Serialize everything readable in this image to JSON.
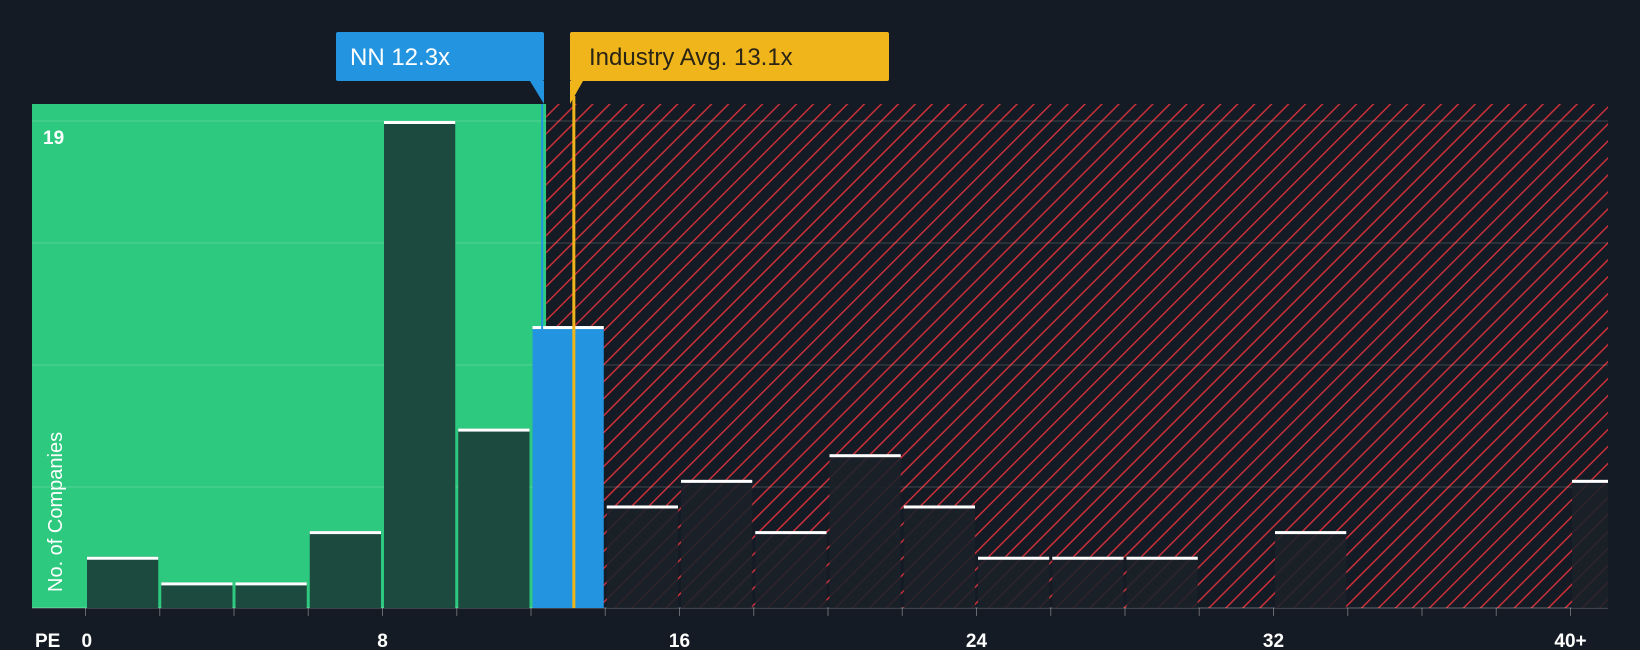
{
  "chart_data": {
    "type": "bar",
    "title": "",
    "xlabel": "PE",
    "ylabel": "No. of Companies",
    "xlim": [
      -3.6,
      41
    ],
    "ylim": [
      0,
      19.6
    ],
    "y_max_label": "19",
    "bins": [
      {
        "x0": 0,
        "x1": 2,
        "value": 2
      },
      {
        "x0": 2,
        "x1": 4,
        "value": 1
      },
      {
        "x0": 4,
        "x1": 6,
        "value": 1
      },
      {
        "x0": 6,
        "x1": 8,
        "value": 3
      },
      {
        "x0": 8,
        "x1": 10,
        "value": 19
      },
      {
        "x0": 10,
        "x1": 12,
        "value": 7
      },
      {
        "x0": 12,
        "x1": 14,
        "value": 11,
        "highlight": true
      },
      {
        "x0": 14,
        "x1": 16,
        "value": 4
      },
      {
        "x0": 16,
        "x1": 18,
        "value": 5
      },
      {
        "x0": 18,
        "x1": 20,
        "value": 3
      },
      {
        "x0": 20,
        "x1": 22,
        "value": 6
      },
      {
        "x0": 22,
        "x1": 24,
        "value": 4
      },
      {
        "x0": 24,
        "x1": 26,
        "value": 2
      },
      {
        "x0": 26,
        "x1": 28,
        "value": 2
      },
      {
        "x0": 28,
        "x1": 30,
        "value": 2
      },
      {
        "x0": 30,
        "x1": 32,
        "value": 0
      },
      {
        "x0": 32,
        "x1": 34,
        "value": 3
      },
      {
        "x0": 34,
        "x1": 36,
        "value": 0
      },
      {
        "x0": 36,
        "x1": 38,
        "value": 0
      },
      {
        "x0": 38,
        "x1": 40,
        "value": 0
      },
      {
        "x0": 40,
        "x1": 41,
        "value": 5
      }
    ],
    "x_ticks": [
      {
        "value": 0,
        "label": "0"
      },
      {
        "value": 8,
        "label": "8"
      },
      {
        "value": 16,
        "label": "16"
      },
      {
        "value": 24,
        "label": "24"
      },
      {
        "value": 32,
        "label": "32"
      },
      {
        "value": 40,
        "label": "40+"
      }
    ],
    "company": {
      "label": "NN 12.3x",
      "value": 12.3
    },
    "industry": {
      "label": "Industry Avg. 13.1x",
      "value": 13.1
    },
    "colors": {
      "background": "#151b24",
      "undervalued": "#2dc97e",
      "overvalued_hatch": "#c9303a",
      "bar": "#1d4a3e",
      "bar_in_over": "#1b2129",
      "company": "#2394e0",
      "industry": "#efb51a",
      "bar_cap": "#ffffff"
    }
  }
}
